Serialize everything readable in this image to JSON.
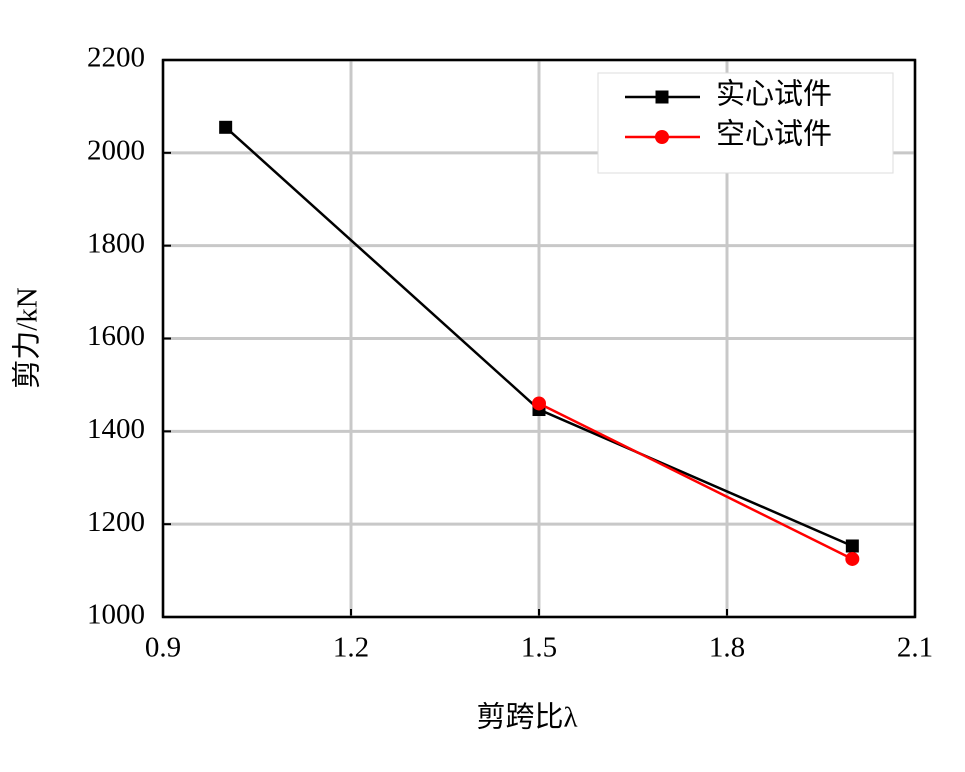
{
  "chart_data": {
    "type": "line",
    "x_label": "剪跨比λ",
    "y_label": "剪力/kN",
    "xlim": [
      0.9,
      2.1
    ],
    "xticks": [
      0.9,
      1.2,
      1.5,
      1.8,
      2.1
    ],
    "ylim": [
      1000,
      2200
    ],
    "yticks": [
      1000,
      1200,
      1400,
      1600,
      1800,
      2000,
      2200
    ],
    "grid": true,
    "legend": "upper right",
    "series": [
      {
        "name": "实心试件",
        "color": "#000000",
        "marker": "square",
        "x": [
          1.0,
          1.5,
          2.0
        ],
        "values": [
          2055,
          1447,
          1153
        ]
      },
      {
        "name": "空心试件",
        "color": "#ff0000",
        "marker": "circle",
        "x": [
          1.5,
          2.0
        ],
        "values": [
          1460,
          1125
        ]
      }
    ]
  }
}
